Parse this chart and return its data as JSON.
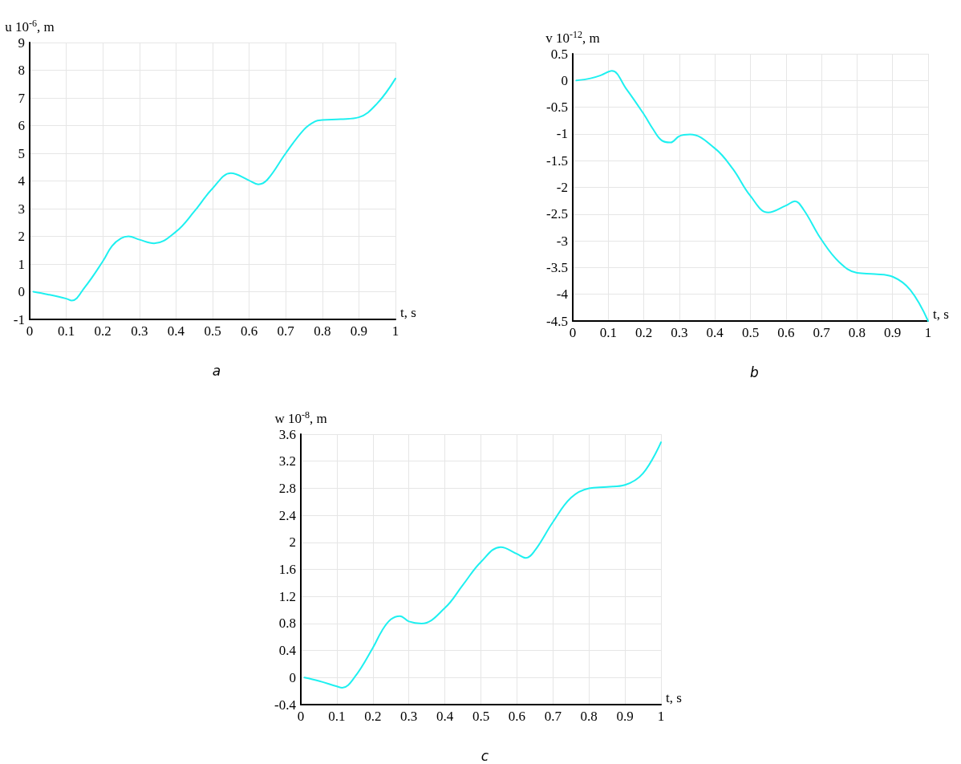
{
  "chart_data": [
    {
      "type": "line",
      "title": "a",
      "xlabel": "t, s",
      "ylabel": "u 10$^{-6}$, m",
      "xlim": [
        0,
        1
      ],
      "ylim": [
        -1,
        9
      ],
      "xticks": [
        0,
        0.1,
        0.2,
        0.3,
        0.4,
        0.5,
        0.6,
        0.7,
        0.8,
        0.9,
        1
      ],
      "yticks": [
        -1,
        0,
        1,
        2,
        3,
        4,
        5,
        6,
        7,
        8,
        9
      ],
      "grid": true,
      "series": [
        {
          "color": "#1ef0f0",
          "x": [
            0.01,
            0.05,
            0.1,
            0.115,
            0.15,
            0.2,
            0.225,
            0.25,
            0.27,
            0.3,
            0.34,
            0.4,
            0.45,
            0.5,
            0.55,
            0.6,
            0.625,
            0.65,
            0.7,
            0.75,
            0.78,
            0.8,
            0.85,
            0.9,
            0.95,
            1
          ],
          "values": [
            0,
            -0.1,
            -0.25,
            -0.32,
            0.15,
            1.1,
            1.65,
            1.93,
            2.0,
            1.88,
            1.75,
            2.17,
            2.9,
            3.73,
            4.28,
            4.02,
            3.88,
            4.05,
            5.0,
            5.86,
            6.15,
            6.2,
            6.23,
            6.3,
            6.8,
            7.7
          ]
        }
      ]
    },
    {
      "type": "line",
      "title": "b",
      "xlabel": "t, s",
      "ylabel": "v 10$^{-12}$, m",
      "xlim": [
        0,
        1
      ],
      "ylim": [
        -4.5,
        0.5
      ],
      "xticks": [
        0,
        0.1,
        0.2,
        0.3,
        0.4,
        0.5,
        0.6,
        0.7,
        0.8,
        0.9,
        1
      ],
      "yticks": [
        -4.5,
        -4,
        -3.5,
        -3,
        -2.5,
        -2,
        -1.5,
        -1,
        -0.5,
        0,
        0.5
      ],
      "grid": true,
      "series": [
        {
          "color": "#1ef0f0",
          "x": [
            0.01,
            0.05,
            0.08,
            0.11,
            0.15,
            0.2,
            0.225,
            0.25,
            0.275,
            0.3,
            0.33,
            0.4,
            0.45,
            0.5,
            0.55,
            0.6,
            0.625,
            0.65,
            0.7,
            0.75,
            0.8,
            0.85,
            0.9,
            0.95,
            1
          ],
          "values": [
            0,
            0.04,
            0.1,
            0.18,
            -0.15,
            -0.63,
            -0.9,
            -1.12,
            -1.16,
            -1.04,
            -1.01,
            -1.27,
            -1.65,
            -2.16,
            -2.47,
            -2.34,
            -2.26,
            -2.42,
            -2.98,
            -3.4,
            -3.6,
            -3.62,
            -3.67,
            -3.92,
            -4.5
          ]
        }
      ]
    },
    {
      "type": "line",
      "title": "c",
      "xlabel": "t, s",
      "ylabel": "w 10$^{-8}$, m",
      "xlim": [
        0,
        1
      ],
      "ylim": [
        -0.4,
        3.6
      ],
      "xticks": [
        0,
        0.1,
        0.2,
        0.3,
        0.4,
        0.5,
        0.6,
        0.7,
        0.8,
        0.9,
        1
      ],
      "yticks": [
        -0.4,
        0,
        0.4,
        0.8,
        1.2,
        1.6,
        2,
        2.4,
        2.8,
        3.2,
        3.6
      ],
      "grid": true,
      "series": [
        {
          "color": "#1ef0f0",
          "x": [
            0.01,
            0.05,
            0.1,
            0.115,
            0.15,
            0.2,
            0.225,
            0.25,
            0.275,
            0.3,
            0.335,
            0.4,
            0.45,
            0.5,
            0.555,
            0.6,
            0.625,
            0.65,
            0.7,
            0.75,
            0.8,
            0.85,
            0.9,
            0.95,
            1
          ],
          "values": [
            0,
            -0.05,
            -0.13,
            -0.15,
            0.01,
            0.44,
            0.69,
            0.86,
            0.91,
            0.83,
            0.8,
            1.03,
            1.37,
            1.71,
            1.93,
            1.83,
            1.77,
            1.88,
            2.3,
            2.66,
            2.8,
            2.82,
            2.85,
            3.02,
            3.48
          ]
        }
      ]
    }
  ]
}
